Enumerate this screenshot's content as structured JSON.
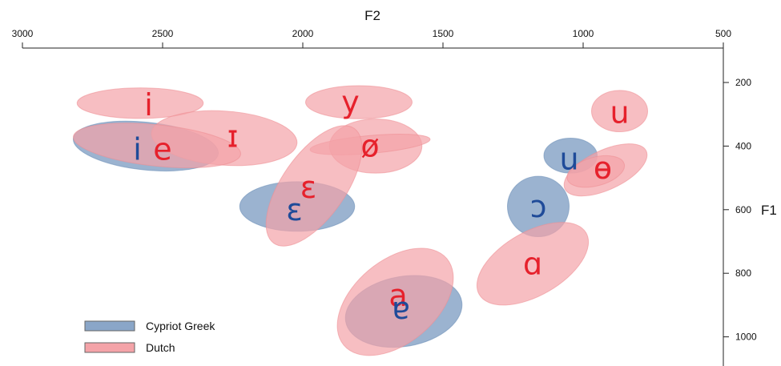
{
  "chart_data": {
    "type": "scatter",
    "title": "",
    "xlabel": "F2",
    "ylabel": "F1",
    "xlim": [
      3000,
      500
    ],
    "ylim": [
      1000,
      200
    ],
    "x_axis_position": "top",
    "y_axis_position": "right",
    "xticks": [
      3000,
      2500,
      2000,
      1500,
      1000,
      500
    ],
    "xtick_labels": [
      "3000",
      "2500",
      "2000",
      "1500",
      "1000",
      "500"
    ],
    "yticks": [
      200,
      400,
      600,
      800,
      1000
    ],
    "ytick_labels": [
      "200",
      "400",
      "600",
      "800",
      "1000"
    ],
    "grid": false,
    "legend_position": "bottom-left",
    "series": [
      {
        "name": "Cypriot Greek",
        "fill": "#8aa6c8",
        "stroke": "#6d8fb8",
        "label_color": "#1f4b99",
        "vowels": [
          {
            "label": "i",
            "f2": 2560,
            "f1": 400,
            "f2_radius": 260,
            "f1_radius": 75,
            "angle": 6,
            "label_f2": 2590,
            "label_f1": 410
          },
          {
            "label": "ɛ",
            "f2": 2020,
            "f1": 590,
            "f2_radius": 205,
            "f1_radius": 78,
            "angle": 0,
            "label_f2": 2030,
            "label_f1": 600
          },
          {
            "label": "ɐ",
            "f2": 1640,
            "f1": 920,
            "f2_radius": 210,
            "f1_radius": 110,
            "angle": -10,
            "label_f2": 1650,
            "label_f1": 910
          },
          {
            "label": "ɔ",
            "f2": 1160,
            "f1": 590,
            "f2_radius": 110,
            "f1_radius": 95,
            "angle": 0,
            "label_f2": 1160,
            "label_f1": 590
          },
          {
            "label": "u",
            "f2": 1045,
            "f1": 430,
            "f2_radius": 95,
            "f1_radius": 55,
            "angle": 0,
            "label_f2": 1050,
            "label_f1": 440
          }
        ]
      },
      {
        "name": "Dutch",
        "fill": "#f4a3a8",
        "stroke": "#ee8f95",
        "label_color": "#e6212c",
        "vowels": [
          {
            "label": "i",
            "f2": 2580,
            "f1": 265,
            "f2_radius": 225,
            "f1_radius": 48,
            "angle": 0,
            "label_f2": 2550,
            "label_f1": 270
          },
          {
            "label": "y",
            "f2": 1800,
            "f1": 262,
            "f2_radius": 190,
            "f1_radius": 52,
            "angle": 0,
            "label_f2": 1830,
            "label_f1": 262
          },
          {
            "label": "u",
            "f2": 870,
            "f1": 290,
            "f2_radius": 100,
            "f1_radius": 65,
            "angle": 0,
            "label_f2": 870,
            "label_f1": 295
          },
          {
            "label": "ɪ",
            "f2": 2280,
            "f1": 375,
            "f2_radius": 260,
            "f1_radius": 85,
            "angle": 4,
            "label_f2": 2250,
            "label_f1": 370
          },
          {
            "label": "e",
            "f2": 2520,
            "f1": 398,
            "f2_radius": 300,
            "f1_radius": 65,
            "angle": 6,
            "label_f2": 2500,
            "label_f1": 410
          },
          {
            "label": "ø",
            "f2": 1740,
            "f1": 400,
            "f2_radius": 165,
            "f1_radius": 85,
            "angle": 0,
            "label_f2": 1760,
            "label_f1": 400
          },
          {
            "label": "ø",
            "f2": 1760,
            "f1": 395,
            "f2_radius": 215,
            "f1_radius": 28,
            "angle": -5,
            "label_f2": 1760,
            "label_f1": 400,
            "hide_label": true
          },
          {
            "label": "ɛ",
            "f2": 1960,
            "f1": 525,
            "f2_radius": 250,
            "f1_radius": 100,
            "angle": -55,
            "label_f2": 1980,
            "label_f1": 530
          },
          {
            "label": "ɵ",
            "f2": 920,
            "f1": 475,
            "f2_radius": 160,
            "f1_radius": 62,
            "angle": -25,
            "label_f2": 930,
            "label_f1": 470
          },
          {
            "label": "ɵ",
            "f2": 955,
            "f1": 480,
            "f2_radius": 105,
            "f1_radius": 45,
            "angle": -15,
            "label_f2": 930,
            "label_f1": 470,
            "hide_label": true
          },
          {
            "label": "ɑ",
            "f2": 1180,
            "f1": 770,
            "f2_radius": 220,
            "f1_radius": 100,
            "angle": -30,
            "label_f2": 1180,
            "label_f1": 770
          },
          {
            "label": "a",
            "f2": 1670,
            "f1": 890,
            "f2_radius": 240,
            "f1_radius": 130,
            "angle": -40,
            "label_f2": 1660,
            "label_f1": 870
          }
        ]
      }
    ]
  },
  "legend": {
    "items": [
      {
        "label": "Cypriot Greek",
        "fill": "#8aa6c8",
        "stroke": "#6d8fb8"
      },
      {
        "label": "Dutch",
        "fill": "#f4a3a8",
        "stroke": "#ee8f95"
      }
    ]
  }
}
